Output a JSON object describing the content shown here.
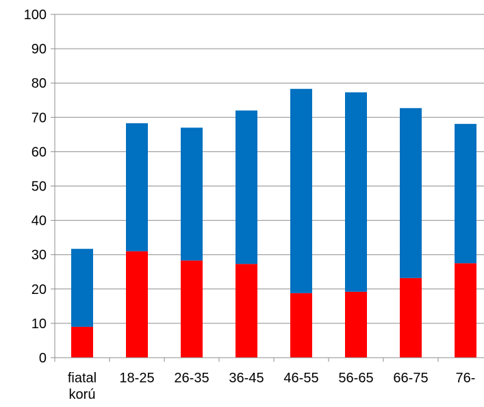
{
  "chart_data": {
    "type": "bar",
    "stacked": true,
    "title": "",
    "xlabel": "",
    "ylabel": "",
    "ylim": [
      0,
      100
    ],
    "yticks": [
      0,
      10,
      20,
      30,
      40,
      50,
      60,
      70,
      80,
      90,
      100
    ],
    "grid": true,
    "legend": "none",
    "categories": [
      [
        "fiatal",
        "korú"
      ],
      [
        "18-25"
      ],
      [
        "26-35"
      ],
      [
        "36-45"
      ],
      [
        "46-55"
      ],
      [
        "56-65"
      ],
      [
        "66-75"
      ],
      [
        "76-"
      ]
    ],
    "series": [
      {
        "color": "#ff0000",
        "values": [
          9,
          31,
          28.3,
          27.3,
          18.8,
          19.2,
          23.2,
          27.5
        ]
      },
      {
        "color": "#0070c0",
        "values": [
          22.7,
          37.3,
          38.7,
          44.7,
          59.5,
          58.1,
          49.5,
          40.6
        ]
      }
    ],
    "colors": {
      "grid": "#8c8c8c",
      "axis": "#8c8c8c",
      "text": "#000000"
    }
  }
}
